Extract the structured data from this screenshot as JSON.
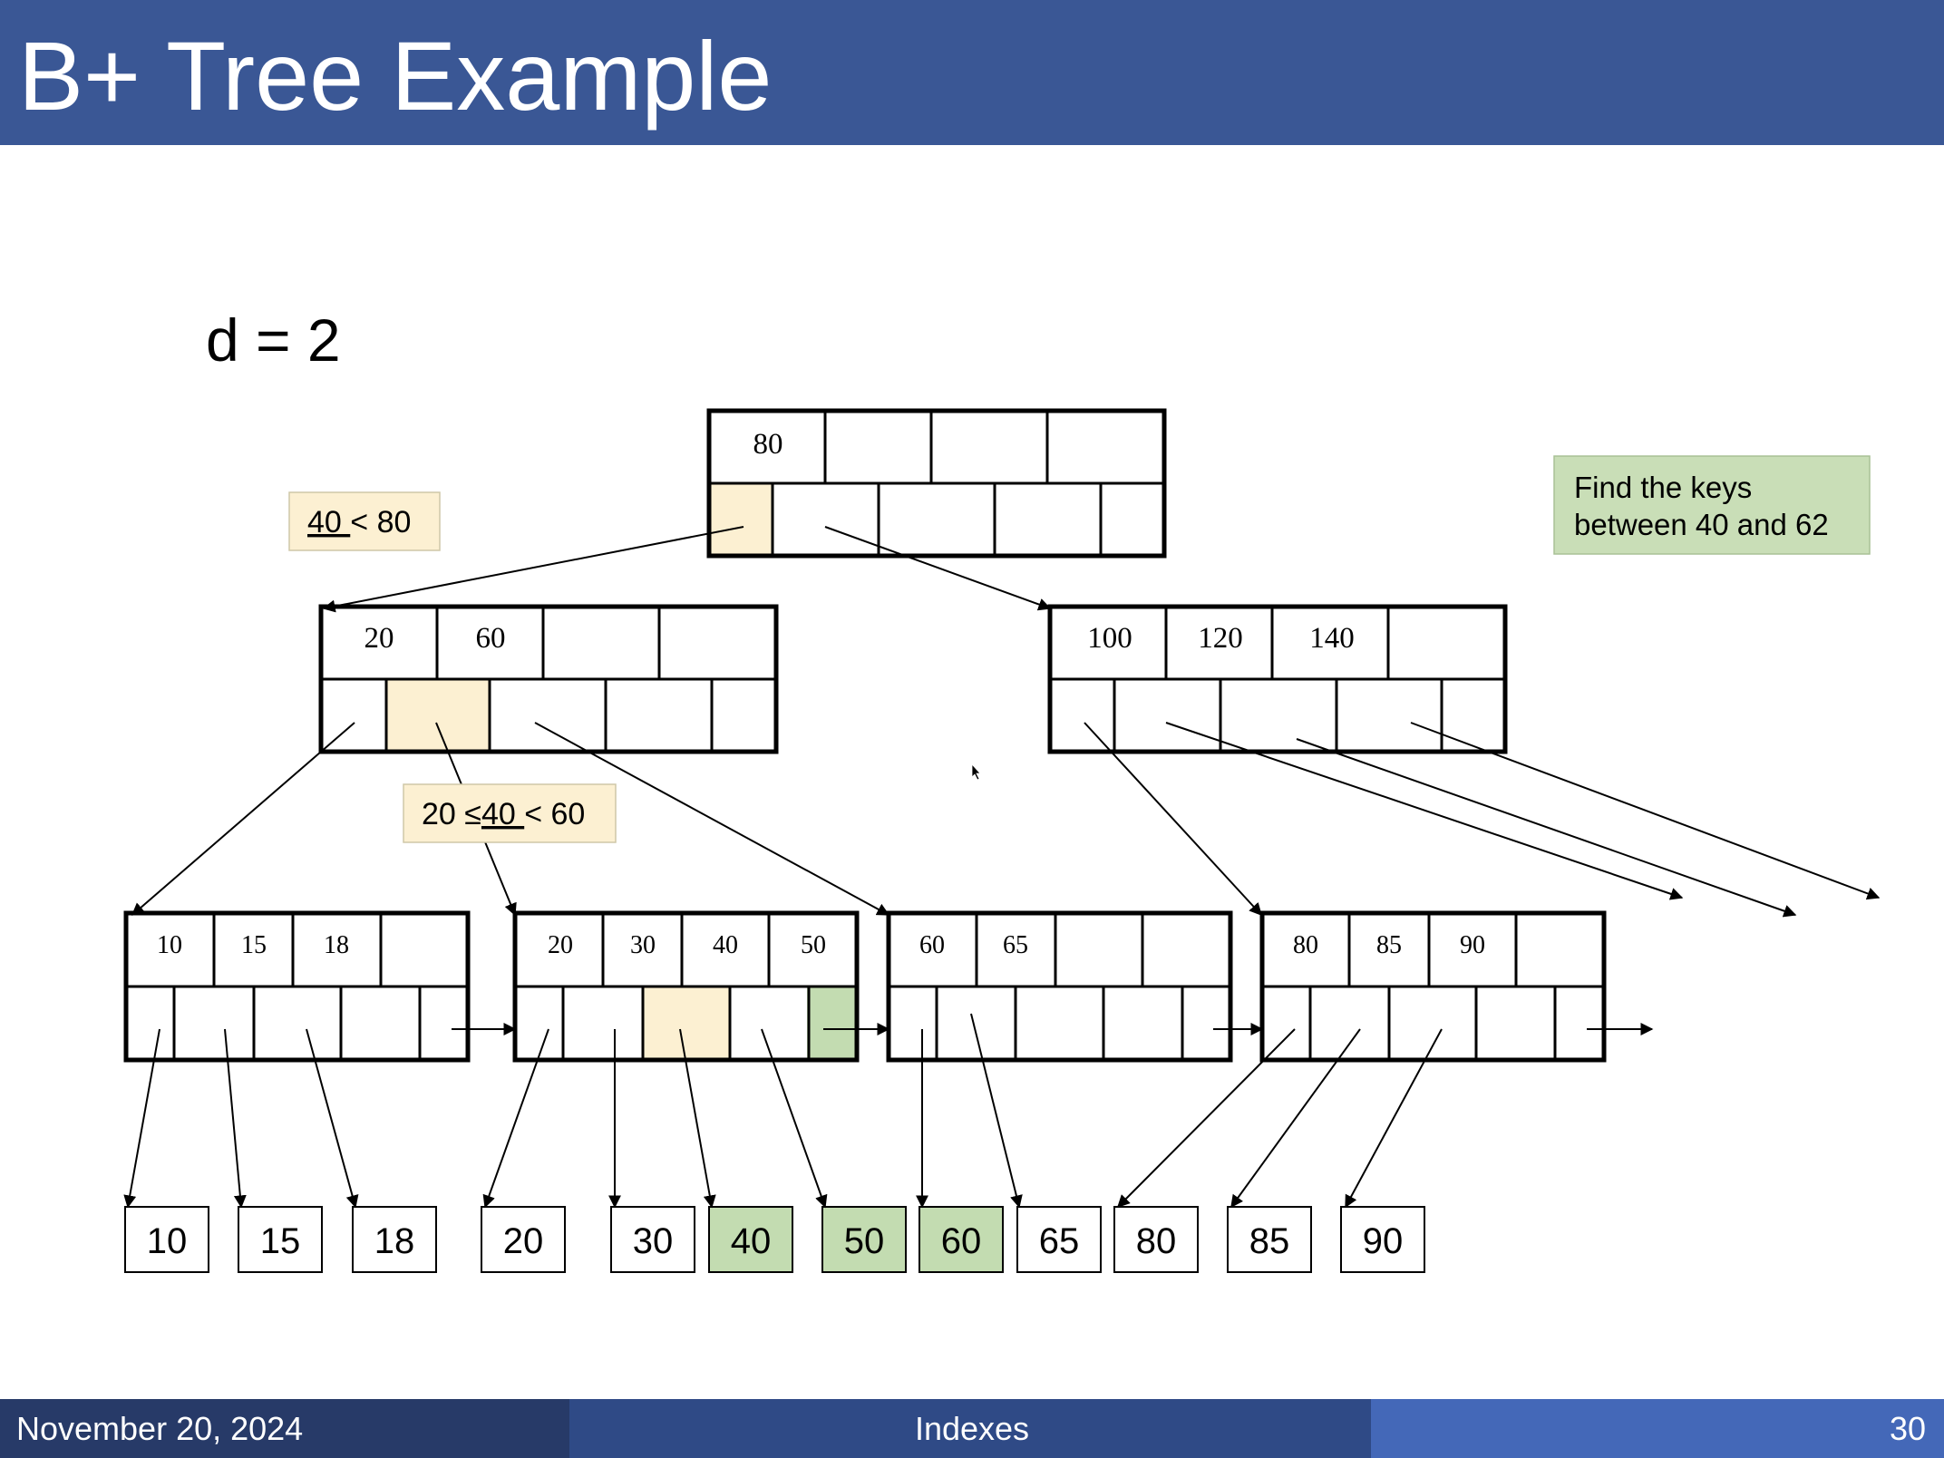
{
  "slide": {
    "title": "B+ Tree Example",
    "order_label": "d = 2",
    "note": [
      "Find the keys",
      "between 40 and 62"
    ],
    "annotations": {
      "root_compare": {
        "underlined": "40 ",
        "rest": "< 80"
      },
      "inner_compare": {
        "prefix": "20 ≤",
        "underlined": "40 ",
        "rest": "< 60"
      }
    }
  },
  "tree": {
    "root": {
      "keys": [
        "80"
      ]
    },
    "internal": [
      {
        "keys": [
          "20",
          "60"
        ]
      },
      {
        "keys": [
          "100",
          "120",
          "140"
        ]
      }
    ],
    "leaves": [
      {
        "keys": [
          "10",
          "15",
          "18"
        ]
      },
      {
        "keys": [
          "20",
          "30",
          "40",
          "50"
        ]
      },
      {
        "keys": [
          "60",
          "65"
        ]
      },
      {
        "keys": [
          "80",
          "85",
          "90"
        ]
      }
    ],
    "records": [
      "10",
      "15",
      "18",
      "20",
      "30",
      "40",
      "50",
      "60",
      "65",
      "80",
      "85",
      "90"
    ],
    "result_records": [
      "40",
      "50",
      "60"
    ]
  },
  "colors": {
    "header_bg": "#3a5795",
    "highlight_path": "#fcf0d2",
    "highlight_result": "#c3dcb1",
    "note_bg": "#c9deb7"
  },
  "footer": {
    "date": "November 20, 2024",
    "topic": "Indexes",
    "page": "30"
  }
}
